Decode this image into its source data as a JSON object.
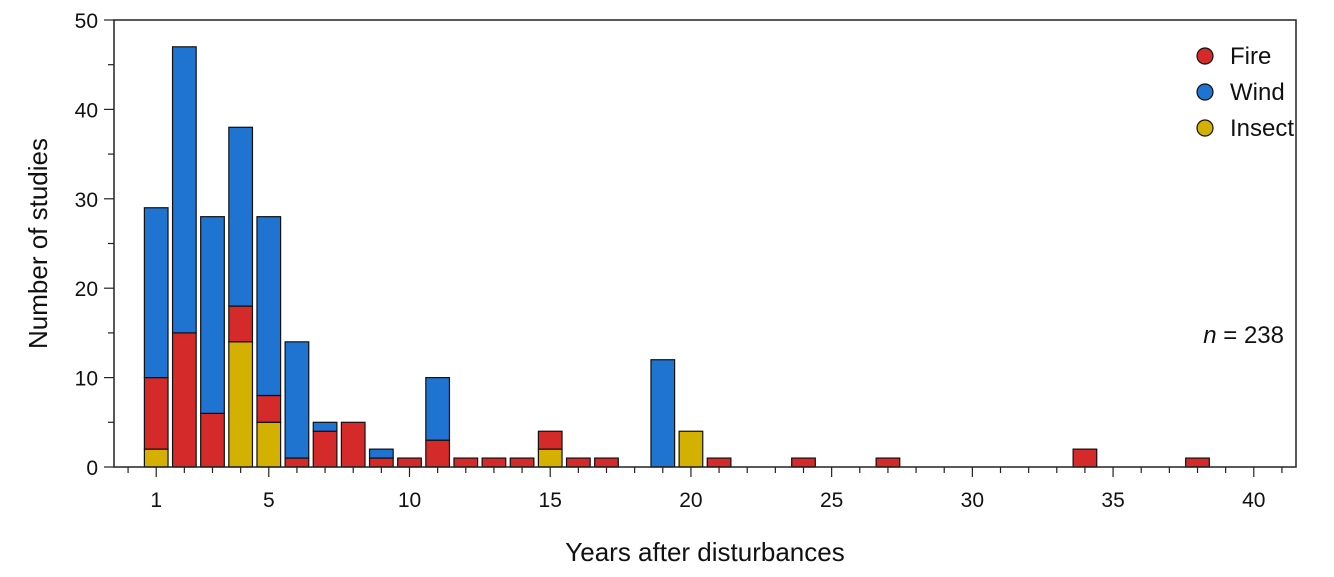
{
  "chart_data": {
    "type": "bar",
    "stacked": true,
    "xlabel": "Years after disturbances",
    "ylabel": "Number of studies",
    "xlim": [
      -0.5,
      41.5
    ],
    "ylim": [
      0,
      50
    ],
    "x_ticks": [
      1,
      5,
      10,
      15,
      20,
      25,
      30,
      35,
      40
    ],
    "y_ticks": [
      0,
      10,
      20,
      30,
      40,
      50
    ],
    "annotation": {
      "italic": "n",
      "rest": " = 238"
    },
    "legend_position": "top-right",
    "grid": false,
    "series": [
      {
        "name": "Insect",
        "color": "#d4b000",
        "points": [
          [
            1,
            2
          ],
          [
            4,
            14
          ],
          [
            5,
            5
          ],
          [
            15,
            2
          ],
          [
            20,
            4
          ]
        ]
      },
      {
        "name": "Fire",
        "color": "#d42a2a",
        "points": [
          [
            1,
            8
          ],
          [
            2,
            15
          ],
          [
            3,
            6
          ],
          [
            4,
            4
          ],
          [
            5,
            3
          ],
          [
            6,
            1
          ],
          [
            7,
            4
          ],
          [
            8,
            5
          ],
          [
            9,
            1
          ],
          [
            10,
            1
          ],
          [
            11,
            3
          ],
          [
            12,
            1
          ],
          [
            13,
            1
          ],
          [
            14,
            1
          ],
          [
            15,
            2
          ],
          [
            16,
            1
          ],
          [
            17,
            1
          ],
          [
            21,
            1
          ],
          [
            24,
            1
          ],
          [
            27,
            1
          ],
          [
            34,
            2
          ],
          [
            38,
            1
          ]
        ]
      },
      {
        "name": "Wind",
        "color": "#1f73d1",
        "points": [
          [
            1,
            19
          ],
          [
            2,
            32
          ],
          [
            3,
            22
          ],
          [
            4,
            20
          ],
          [
            5,
            20
          ],
          [
            6,
            13
          ],
          [
            7,
            1
          ],
          [
            9,
            1
          ],
          [
            11,
            7
          ],
          [
            19,
            12
          ]
        ]
      }
    ],
    "legend": [
      {
        "name": "Fire",
        "color": "#d42a2a"
      },
      {
        "name": "Wind",
        "color": "#1f73d1"
      },
      {
        "name": "Insect",
        "color": "#d4b000"
      }
    ]
  }
}
